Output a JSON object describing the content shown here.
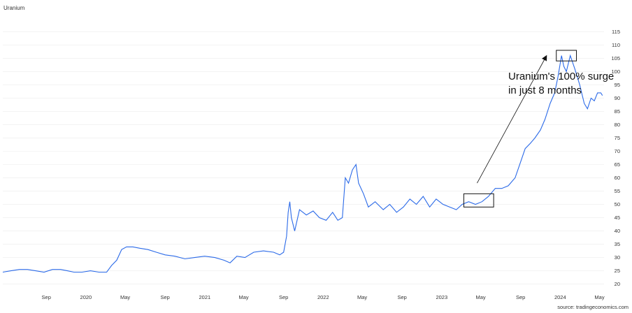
{
  "chart_data": {
    "type": "line",
    "title": "Uranium",
    "source": "source: tradingeconomics.com",
    "x_ticks": [
      "Sep",
      "2020",
      "May",
      "Sep",
      "2021",
      "May",
      "Sep",
      "2022",
      "May",
      "Sep",
      "2023",
      "May",
      "Sep",
      "2024",
      "May"
    ],
    "x_tick_dates": [
      "2019-09-01",
      "2020-01-01",
      "2020-05-01",
      "2020-09-01",
      "2021-01-01",
      "2021-05-01",
      "2021-09-01",
      "2022-01-01",
      "2022-05-01",
      "2022-09-01",
      "2023-01-01",
      "2023-05-01",
      "2023-09-01",
      "2024-01-01",
      "2024-05-01"
    ],
    "xlim": [
      "2019-04-20",
      "2024-05-15"
    ],
    "y_ticks": [
      "20",
      "25",
      "30",
      "35",
      "40",
      "45",
      "50",
      "55",
      "60",
      "65",
      "70",
      "75",
      "80",
      "85",
      "90",
      "95",
      "100",
      "105",
      "110",
      "115"
    ],
    "ylim": [
      17,
      118
    ],
    "grid": "horizontal",
    "line_color": "#2b6ae8",
    "series": [
      {
        "x": [
          "2019-04-20",
          "2019-05-15",
          "2019-06-10",
          "2019-07-05",
          "2019-07-30",
          "2019-08-25",
          "2019-09-20",
          "2019-10-15",
          "2019-11-05",
          "2019-11-25",
          "2019-12-20",
          "2020-01-15",
          "2020-02-10",
          "2020-03-05",
          "2020-03-20",
          "2020-04-05",
          "2020-04-20",
          "2020-05-05",
          "2020-05-25",
          "2020-06-15",
          "2020-07-10",
          "2020-08-05",
          "2020-09-01",
          "2020-10-01",
          "2020-11-01",
          "2020-12-01",
          "2021-01-01",
          "2021-02-01",
          "2021-03-01",
          "2021-03-20",
          "2021-04-10",
          "2021-05-05",
          "2021-06-01",
          "2021-07-01",
          "2021-08-01",
          "2021-08-20",
          "2021-09-01",
          "2021-09-10",
          "2021-09-15",
          "2021-09-20",
          "2021-09-25",
          "2021-10-05",
          "2021-10-20",
          "2021-11-10",
          "2021-12-01",
          "2021-12-20",
          "2022-01-10",
          "2022-01-30",
          "2022-02-15",
          "2022-03-01",
          "2022-03-10",
          "2022-03-20",
          "2022-04-01",
          "2022-04-12",
          "2022-04-20",
          "2022-05-05",
          "2022-05-20",
          "2022-06-10",
          "2022-07-05",
          "2022-07-25",
          "2022-08-15",
          "2022-09-05",
          "2022-09-25",
          "2022-10-15",
          "2022-11-05",
          "2022-11-25",
          "2022-12-15",
          "2023-01-05",
          "2023-01-25",
          "2023-02-15",
          "2023-03-05",
          "2023-03-25",
          "2023-04-15",
          "2023-05-05",
          "2023-05-25",
          "2023-06-15",
          "2023-07-05",
          "2023-07-25",
          "2023-08-15",
          "2023-09-01",
          "2023-09-15",
          "2023-10-01",
          "2023-10-15",
          "2023-11-01",
          "2023-11-15",
          "2023-12-01",
          "2023-12-15",
          "2023-12-25",
          "2024-01-05",
          "2024-01-12",
          "2024-01-20",
          "2024-02-01",
          "2024-02-15",
          "2024-03-01",
          "2024-03-15",
          "2024-03-25",
          "2024-04-05",
          "2024-04-15",
          "2024-04-25",
          "2024-05-05",
          "2024-05-10"
        ],
        "values": [
          24.5,
          25,
          25.5,
          25.5,
          25,
          24.5,
          25.5,
          25.5,
          25,
          24.5,
          24.5,
          25,
          24.5,
          24.5,
          27,
          29,
          33,
          34,
          34,
          33.5,
          33,
          32,
          31,
          30.5,
          29.5,
          30,
          30.5,
          30,
          29,
          28,
          30.5,
          30,
          32,
          32.5,
          32,
          31,
          32,
          38,
          47,
          51,
          45,
          40,
          48,
          46,
          47.5,
          45,
          44,
          47,
          44,
          45,
          60,
          58,
          63,
          65,
          58,
          54,
          49,
          51,
          48,
          50,
          47,
          49,
          52,
          50,
          53,
          49,
          52,
          50,
          49,
          48,
          50,
          51,
          50,
          51,
          53,
          56,
          56,
          57,
          60,
          66,
          71,
          73,
          75,
          78,
          82,
          88,
          92,
          98,
          106,
          102,
          100,
          106,
          101,
          95,
          88,
          86,
          90,
          89,
          92,
          92,
          91
        ]
      }
    ],
    "annotations": [
      {
        "text_lines": [
          "Uranium's 100% surge",
          "in just 8 months"
        ]
      }
    ],
    "highlight_boxes": [
      {
        "x0": "2023-03-10",
        "x1": "2023-06-10",
        "y0": 49,
        "y1": 54
      },
      {
        "x0": "2023-12-20",
        "x1": "2024-02-20",
        "y0": 104,
        "y1": 108
      }
    ],
    "arrow": {
      "from": [
        "2023-04-20",
        58
      ],
      "to": [
        "2023-11-20",
        106
      ]
    },
    "annotation_anchor": [
      "2023-07-25",
      97
    ]
  }
}
